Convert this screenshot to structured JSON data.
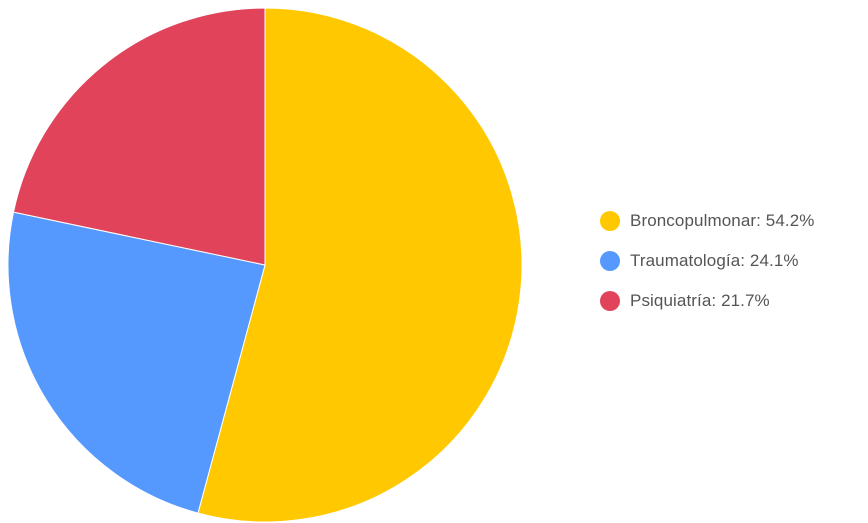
{
  "chart_data": {
    "type": "pie",
    "categories": [
      "Broncopulmonar",
      "Traumatología",
      "Psiquiatría"
    ],
    "values": [
      54.2,
      24.1,
      21.7
    ],
    "colors": [
      "#ffc800",
      "#5599ff",
      "#e1435b"
    ],
    "legend_labels": [
      "Broncopulmonar: 54.2%",
      "Traumatología: 24.1%",
      "Psiquiatría: 21.7%"
    ],
    "legend_position": "right",
    "start_angle": "top",
    "direction": "clockwise"
  }
}
